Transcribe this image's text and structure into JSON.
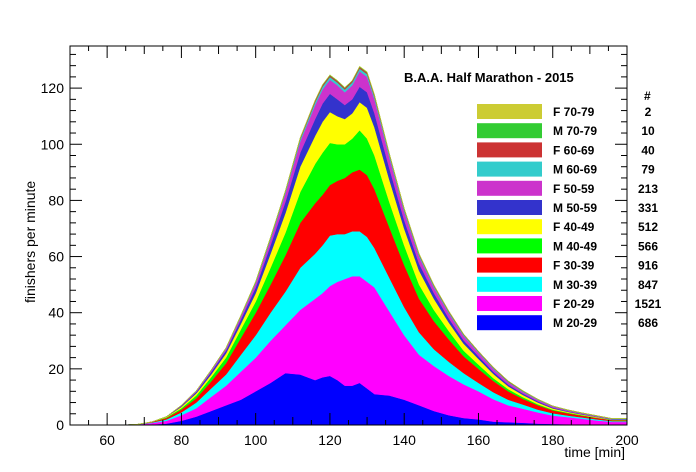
{
  "chart_data": {
    "type": "area",
    "stacked": true,
    "title": "B.A.A. Half Marathon - 2015",
    "xlabel": "time [min]",
    "ylabel": "finishers per minute",
    "xlim": [
      50,
      200
    ],
    "ylim": [
      0,
      135
    ],
    "xticks": [
      60,
      80,
      100,
      120,
      140,
      160,
      180,
      200
    ],
    "yticks": [
      0,
      20,
      40,
      60,
      80,
      100,
      120
    ],
    "grid": false,
    "legend_position": "right",
    "count_header": "#",
    "x": [
      60,
      64,
      68,
      72,
      76,
      80,
      84,
      88,
      92,
      96,
      100,
      104,
      108,
      112,
      116,
      118,
      120,
      122,
      124,
      126,
      128,
      130,
      132,
      136,
      140,
      144,
      148,
      152,
      156,
      160,
      164,
      168,
      172,
      176,
      180,
      184,
      188,
      192,
      196,
      200
    ],
    "series": [
      {
        "name": "M 20-29",
        "count": "686",
        "color": "#0000ff",
        "values": [
          0,
          0,
          0,
          0.2,
          0.5,
          1.5,
          3,
          5,
          7,
          9,
          12,
          15,
          18.5,
          18,
          16,
          17,
          17.5,
          16,
          14,
          14,
          15,
          13,
          11,
          10.5,
          9,
          7,
          5,
          3.5,
          2.5,
          2,
          1.2,
          1,
          0.8,
          0.5,
          0.4,
          0.3,
          0.2,
          0.1,
          0.1,
          0.1
        ]
      },
      {
        "name": "F 20-29",
        "count": "1521",
        "color": "#ff00ff",
        "values": [
          0,
          0,
          0.2,
          0.5,
          1,
          2,
          3,
          5,
          7,
          10,
          12,
          15,
          17,
          23,
          29,
          30,
          32,
          35,
          38,
          39,
          38,
          38,
          38,
          30,
          23,
          18,
          16,
          14,
          12,
          10,
          8,
          6,
          5,
          4,
          3,
          2.5,
          2,
          1.5,
          1,
          1
        ]
      },
      {
        "name": "M 30-39",
        "count": "847",
        "color": "#00ffff",
        "values": [
          0,
          0,
          0,
          0.2,
          0.5,
          1,
          2,
          3,
          4,
          6,
          8,
          10,
          12,
          15,
          16,
          17,
          18,
          17,
          16,
          16,
          16,
          16,
          14,
          12,
          10,
          8,
          6,
          5,
          4,
          3,
          2.5,
          2,
          1.5,
          1,
          0.8,
          0.6,
          0.5,
          0.4,
          0.3,
          0.3
        ]
      },
      {
        "name": "F 30-39",
        "count": "916",
        "color": "#ff0000",
        "values": [
          0,
          0,
          0,
          0.2,
          0.5,
          1,
          1.5,
          2.5,
          4,
          6,
          8,
          10,
          13,
          16,
          18,
          18,
          18,
          19,
          20,
          21,
          22,
          22,
          21,
          18,
          15,
          12,
          10,
          8,
          6,
          5,
          4,
          3,
          2,
          1.5,
          1,
          0.8,
          0.6,
          0.5,
          0.3,
          0.3
        ]
      },
      {
        "name": "M 40-49",
        "count": "566",
        "color": "#00ff00",
        "values": [
          0,
          0,
          0,
          0,
          0.2,
          0.5,
          1,
          1.5,
          2,
          3,
          4,
          6,
          8,
          11,
          14,
          15,
          15,
          13,
          12,
          12,
          14,
          13,
          12,
          9,
          7,
          5,
          4,
          3,
          2,
          1.5,
          1,
          0.8,
          0.6,
          0.4,
          0.3,
          0.2,
          0.2,
          0.1,
          0.1,
          0.1
        ]
      },
      {
        "name": "F 40-49",
        "count": "512",
        "color": "#ffff00",
        "values": [
          0,
          0,
          0,
          0,
          0.2,
          0.5,
          0.8,
          1,
          1.5,
          2,
          3,
          5,
          7,
          9,
          10,
          11,
          11,
          10,
          9,
          9,
          10,
          11,
          10,
          8,
          6,
          5,
          4,
          3,
          2.5,
          2,
          1.5,
          1,
          0.8,
          0.6,
          0.4,
          0.3,
          0.2,
          0.2,
          0.1,
          0.1
        ]
      },
      {
        "name": "M 50-59",
        "count": "331",
        "color": "#3333cc",
        "values": [
          0,
          0,
          0,
          0,
          0.1,
          0.3,
          0.5,
          0.8,
          1,
          1.5,
          2,
          3,
          4,
          5,
          6,
          6.5,
          6.5,
          6,
          5,
          5,
          5.5,
          5.5,
          5,
          4,
          3,
          2.5,
          2,
          1.5,
          1.2,
          1,
          0.8,
          0.6,
          0.5,
          0.4,
          0.3,
          0.2,
          0.2,
          0.1,
          0.1,
          0.1
        ]
      },
      {
        "name": "F 50-59",
        "count": "213",
        "color": "#cc33cc",
        "values": [
          0,
          0,
          0,
          0,
          0,
          0.2,
          0.3,
          0.5,
          0.7,
          1,
          1.5,
          2,
          3,
          4,
          5,
          5,
          5,
          5,
          4.5,
          5,
          5.5,
          5.5,
          5,
          4,
          3,
          2.5,
          2,
          1.8,
          1.5,
          1.2,
          1,
          0.8,
          0.6,
          0.5,
          0.4,
          0.3,
          0.2,
          0.2,
          0.1,
          0.1
        ]
      },
      {
        "name": "M 60-69",
        "count": "79",
        "color": "#33cccc",
        "values": [
          0,
          0,
          0,
          0,
          0,
          0,
          0.1,
          0.2,
          0.2,
          0.3,
          0.4,
          0.5,
          0.6,
          0.8,
          1,
          1,
          1,
          1,
          1,
          1,
          1,
          1,
          0.9,
          0.8,
          0.7,
          0.6,
          0.5,
          0.4,
          0.4,
          0.3,
          0.3,
          0.2,
          0.2,
          0.2,
          0.1,
          0.1,
          0.1,
          0.1,
          0.1,
          0.1
        ]
      },
      {
        "name": "F 60-69",
        "count": "40",
        "color": "#cc3333",
        "values": [
          0,
          0,
          0,
          0,
          0,
          0,
          0,
          0.1,
          0.1,
          0.2,
          0.2,
          0.3,
          0.3,
          0.4,
          0.5,
          0.5,
          0.5,
          0.5,
          0.5,
          0.5,
          0.5,
          0.5,
          0.5,
          0.4,
          0.4,
          0.3,
          0.3,
          0.3,
          0.2,
          0.2,
          0.2,
          0.2,
          0.1,
          0.1,
          0.1,
          0.1,
          0.1,
          0.1,
          0.1,
          0.1
        ]
      },
      {
        "name": "M 70-79",
        "count": "10",
        "color": "#33cc33",
        "values": [
          0,
          0,
          0,
          0,
          0,
          0,
          0,
          0,
          0,
          0,
          0.1,
          0.1,
          0.1,
          0.1,
          0.2,
          0.2,
          0.2,
          0.2,
          0.2,
          0.2,
          0.2,
          0.2,
          0.2,
          0.1,
          0.1,
          0.1,
          0.1,
          0.1,
          0.1,
          0.1,
          0.1,
          0.1,
          0.1,
          0,
          0,
          0,
          0,
          0,
          0,
          0
        ]
      },
      {
        "name": "F 70-79",
        "count": "2",
        "color": "#cccc33",
        "values": [
          0,
          0,
          0,
          0,
          0,
          0,
          0,
          0,
          0,
          0,
          0,
          0,
          0,
          0,
          0,
          0,
          0,
          0,
          0,
          0,
          0.1,
          0.1,
          0.1,
          0,
          0,
          0,
          0,
          0,
          0,
          0,
          0,
          0,
          0,
          0,
          0,
          0,
          0,
          0,
          0,
          0
        ]
      }
    ]
  }
}
